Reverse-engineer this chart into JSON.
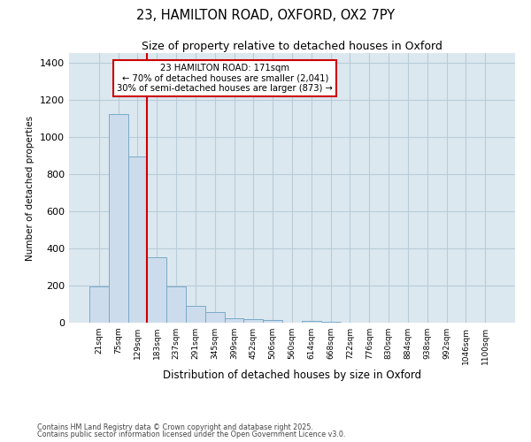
{
  "title1": "23, HAMILTON ROAD, OXFORD, OX2 7PY",
  "title2": "Size of property relative to detached houses in Oxford",
  "xlabel": "Distribution of detached houses by size in Oxford",
  "ylabel": "Number of detached properties",
  "bar_color": "#ccdcec",
  "bar_edge_color": "#7aaac8",
  "grid_color": "#b8ccd8",
  "background_color": "#dce8f0",
  "vline_color": "#cc0000",
  "annotation_text": "23 HAMILTON ROAD: 171sqm\n← 70% of detached houses are smaller (2,041)\n30% of semi-detached houses are larger (873) →",
  "annotation_box_color": "#cc0000",
  "footer1": "Contains HM Land Registry data © Crown copyright and database right 2025.",
  "footer2": "Contains public sector information licensed under the Open Government Licence v3.0.",
  "categories": [
    "21sqm",
    "75sqm",
    "129sqm",
    "183sqm",
    "237sqm",
    "291sqm",
    "345sqm",
    "399sqm",
    "452sqm",
    "506sqm",
    "560sqm",
    "614sqm",
    "668sqm",
    "722sqm",
    "776sqm",
    "830sqm",
    "884sqm",
    "938sqm",
    "992sqm",
    "1046sqm",
    "1100sqm"
  ],
  "values": [
    193,
    1120,
    893,
    350,
    193,
    88,
    55,
    22,
    18,
    12,
    0,
    10,
    5,
    0,
    0,
    0,
    0,
    0,
    0,
    0,
    0
  ],
  "ylim": [
    0,
    1450
  ],
  "yticks": [
    0,
    200,
    400,
    600,
    800,
    1000,
    1200,
    1400
  ],
  "vline_index": 3
}
